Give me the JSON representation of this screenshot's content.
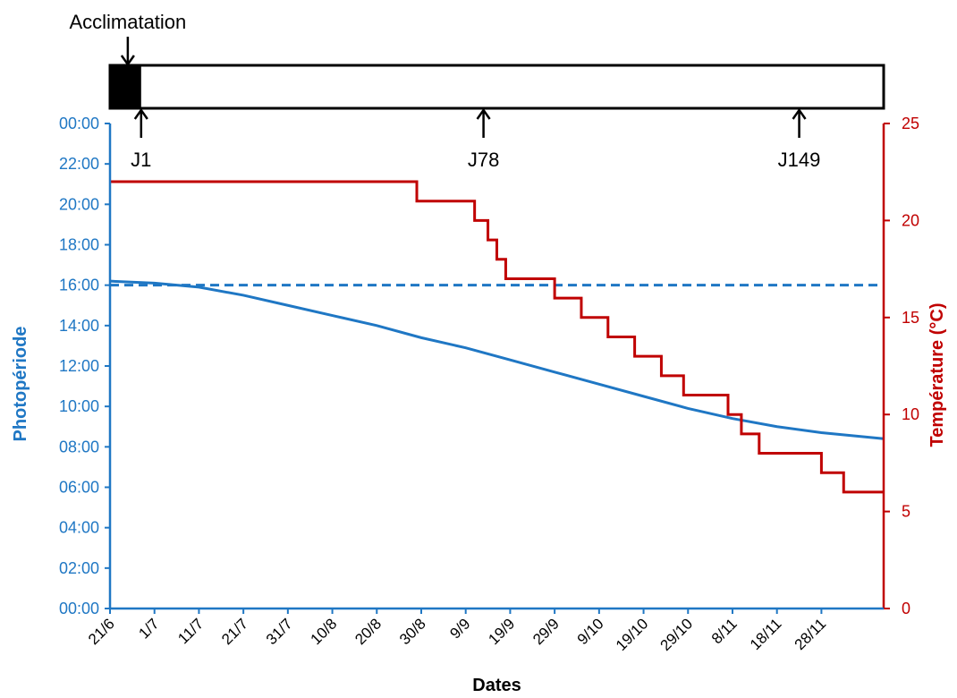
{
  "chart_data": {
    "type": "line",
    "xlabel": "Dates",
    "ylabel_left": "Photopériode",
    "ylabel_right": "Température (°C)",
    "x_tick_labels": [
      "21/6",
      "1/7",
      "11/7",
      "21/7",
      "31/7",
      "10/8",
      "20/8",
      "30/8",
      "9/9",
      "19/9",
      "29/9",
      "9/10",
      "19/10",
      "29/10",
      "8/11",
      "18/11",
      "28/11"
    ],
    "x_range": [
      "21/6",
      "12/12"
    ],
    "y_left_tick_labels": [
      "00:00",
      "02:00",
      "04:00",
      "06:00",
      "08:00",
      "10:00",
      "12:00",
      "14:00",
      "16:00",
      "18:00",
      "20:00",
      "22:00",
      "00:00"
    ],
    "y_left_range_hours": [
      0,
      24
    ],
    "y_right_tick_labels": [
      "0",
      "5",
      "10",
      "15",
      "20",
      "25"
    ],
    "y_right_range": [
      0,
      25
    ],
    "colors": {
      "photoperiod": "#1f77c4",
      "temperature": "#c00000",
      "timeline": "#000000"
    },
    "series": [
      {
        "axis": "left",
        "style": "solid",
        "x": [
          "21/6",
          "1/7",
          "11/7",
          "21/7",
          "31/7",
          "10/8",
          "20/8",
          "30/8",
          "9/9",
          "19/9",
          "29/9",
          "9/10",
          "19/10",
          "29/10",
          "8/11",
          "18/11",
          "28/11",
          "12/12"
        ],
        "y_hours": [
          16.2,
          16.1,
          15.9,
          15.5,
          15.0,
          14.5,
          14.0,
          13.4,
          12.9,
          12.3,
          11.7,
          11.1,
          10.5,
          9.9,
          9.4,
          9.0,
          8.7,
          8.4
        ]
      },
      {
        "axis": "left",
        "style": "dashed",
        "x": [
          "21/6",
          "12/12"
        ],
        "y_hours": [
          16,
          16
        ]
      },
      {
        "axis": "right",
        "style": "step",
        "x": [
          "21/6",
          "29/8",
          "11/9",
          "14/9",
          "16/9",
          "18/9",
          "21/9",
          "29/9",
          "5/10",
          "11/10",
          "17/10",
          "23/10",
          "28/10",
          "7/11",
          "10/11",
          "14/11",
          "28/11",
          "3/12",
          "12/12"
        ],
        "y": [
          22,
          21,
          20,
          19,
          18,
          17,
          17,
          16,
          15,
          14,
          13,
          12,
          11,
          10,
          9,
          8,
          7,
          6,
          6
        ]
      }
    ],
    "timeline": {
      "start": "21/6",
      "end": "12/12",
      "filled_until": "28/6",
      "acclimatation_label": "Acclimatation",
      "acclimatation_arrow_date": "25/6",
      "markers": [
        {
          "label": "J1",
          "date": "28/6"
        },
        {
          "label": "J78",
          "date": "13/9"
        },
        {
          "label": "J149",
          "date": "23/11"
        }
      ]
    }
  }
}
